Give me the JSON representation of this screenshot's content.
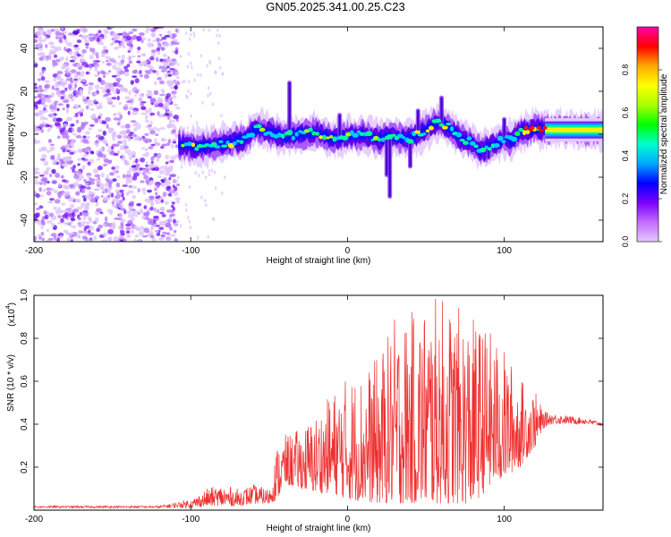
{
  "title": "GN05.2025.341.00.25.C23",
  "colorbar": {
    "label": "Normalized spectral amplitude",
    "ticks": [
      0.0,
      0.2,
      0.4,
      0.6,
      0.8
    ],
    "tick_labels": [
      "0.0",
      "0.2",
      "0.4",
      "0.6",
      "0.8"
    ],
    "colors": [
      "#e6c9ff",
      "#c36bff",
      "#7a00ff",
      "#0000ff",
      "#00aaff",
      "#00ffcc",
      "#00ff00",
      "#aaff00",
      "#ffff00",
      "#ffaa00",
      "#ff0000",
      "#ff00aa"
    ]
  },
  "chart_data": [
    {
      "type": "heatmap",
      "name": "spectrogram",
      "title": "GN05.2025.341.00.25.C23",
      "xlabel": "Height of straight line (km)",
      "ylabel": "Frequency (Hz)",
      "xlim": [
        -200,
        163
      ],
      "ylim": [
        -50,
        50
      ],
      "xticks": [
        -200,
        -100,
        0,
        100
      ],
      "yticks": [
        -40,
        -20,
        0,
        20,
        40
      ],
      "zlim": [
        0,
        1
      ],
      "zlabel": "Normalized spectral amplitude",
      "noise_region_x": [
        -200,
        -108
      ],
      "ridge": {
        "x": [
          -108,
          -95,
          -85,
          -75,
          -65,
          -58,
          -50,
          -40,
          -30,
          -20,
          -10,
          0,
          10,
          20,
          30,
          40,
          50,
          58,
          65,
          72,
          80,
          85,
          90,
          95,
          100,
          105,
          110,
          115,
          120,
          125,
          130,
          140,
          150,
          163
        ],
        "y": [
          -5,
          -6,
          -5,
          -4,
          -2,
          3,
          1,
          -1,
          0,
          1,
          -2,
          -1,
          0,
          -2,
          -1,
          -2,
          2,
          6,
          3,
          -2,
          -4,
          -8,
          -6,
          -4,
          -2,
          -3,
          1,
          2,
          3,
          2,
          2,
          2,
          2,
          2
        ]
      },
      "spikes": [
        {
          "x": -37,
          "y": 25
        },
        {
          "x": -5,
          "y": 10
        },
        {
          "x": 45,
          "y": 12
        },
        {
          "x": 60,
          "y": 18
        },
        {
          "x": 25,
          "y": -20
        },
        {
          "x": 27,
          "y": -30
        },
        {
          "x": 40,
          "y": -16
        },
        {
          "x": 90,
          "y": -12
        },
        {
          "x": 100,
          "y": 8
        }
      ]
    },
    {
      "type": "line",
      "name": "snr",
      "xlabel": "Height of straight line (km)",
      "ylabel": "SNR (10 * v/v)",
      "yscale_label": "(x10",
      "yscale_exp": "4",
      "yscale_close": ")",
      "xlim": [
        -200,
        163
      ],
      "ylim": [
        0,
        1.0
      ],
      "xticks": [
        -200,
        -100,
        0,
        100
      ],
      "yticks": [
        0.2,
        0.4,
        0.6,
        0.8,
        1.0
      ],
      "ytick_labels": [
        "0.2",
        "0.4",
        "0.6",
        "0.8",
        "1.0"
      ],
      "series": [
        {
          "name": "SNR",
          "color": "#ee3030",
          "envelope_x": [
            -200,
            -120,
            -100,
            -90,
            -80,
            -70,
            -60,
            -50,
            -45,
            -40,
            -30,
            -20,
            -10,
            0,
            10,
            20,
            30,
            40,
            50,
            60,
            70,
            80,
            90,
            100,
            110,
            120,
            125,
            130,
            140,
            150,
            163
          ],
          "envelope_low": [
            0.01,
            0.01,
            0.01,
            0.02,
            0.02,
            0.02,
            0.03,
            0.03,
            0.05,
            0.12,
            0.1,
            0.08,
            0.08,
            0.05,
            0.04,
            0.03,
            0.03,
            0.03,
            0.03,
            0.03,
            0.03,
            0.03,
            0.1,
            0.15,
            0.2,
            0.3,
            0.38,
            0.4,
            0.4,
            0.4,
            0.39
          ],
          "envelope_high": [
            0.02,
            0.02,
            0.05,
            0.1,
            0.12,
            0.1,
            0.12,
            0.1,
            0.3,
            0.35,
            0.38,
            0.45,
            0.55,
            0.63,
            0.65,
            0.72,
            0.9,
            0.92,
            0.98,
            1.0,
            0.95,
            0.9,
            0.85,
            0.75,
            0.62,
            0.55,
            0.46,
            0.45,
            0.44,
            0.43,
            0.41
          ]
        }
      ]
    }
  ]
}
